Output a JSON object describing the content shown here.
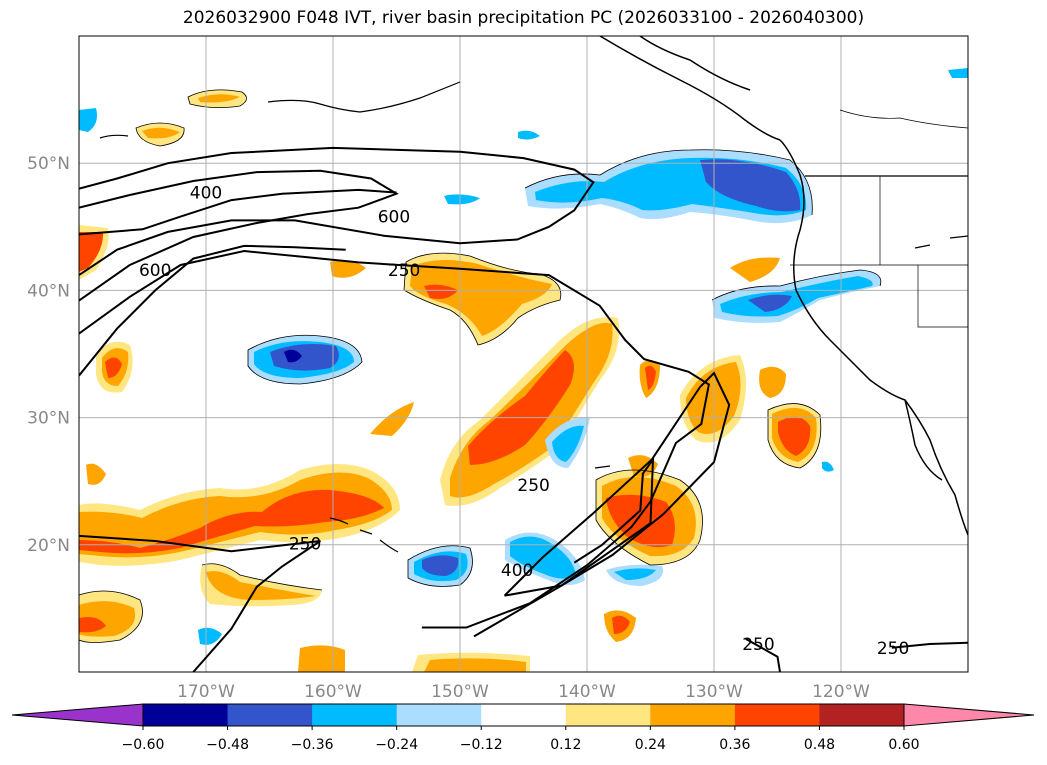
{
  "title": "2026032900 F048 IVT, river basin precipitation PC (2026033100 - 2026040300)",
  "chart_data": {
    "type": "heatmap",
    "projection": "lat-lon map",
    "xlim": [
      -180,
      -110
    ],
    "ylim": [
      10,
      60
    ],
    "x_ticks": [
      {
        "value": -170,
        "label": "170°W"
      },
      {
        "value": -160,
        "label": "160°W"
      },
      {
        "value": -150,
        "label": "150°W"
      },
      {
        "value": -140,
        "label": "140°W"
      },
      {
        "value": -130,
        "label": "130°W"
      },
      {
        "value": -120,
        "label": "120°W"
      }
    ],
    "y_ticks": [
      {
        "value": 20,
        "label": "20°N"
      },
      {
        "value": 30,
        "label": "30°N"
      },
      {
        "value": 40,
        "label": "40°N"
      },
      {
        "value": 50,
        "label": "50°N"
      }
    ],
    "grid": true,
    "colorbar": {
      "levels": [
        -0.6,
        -0.48,
        -0.36,
        -0.24,
        -0.12,
        0.12,
        0.24,
        0.36,
        0.48,
        0.6
      ],
      "tick_labels": [
        "−0.60",
        "−0.48",
        "−0.36",
        "−0.24",
        "−0.12",
        "0.12",
        "0.24",
        "0.36",
        "0.48",
        "0.60"
      ],
      "colors": [
        "#000099",
        "#3355cc",
        "#00bbff",
        "#aaddff",
        "#ffffff",
        "#ffe680",
        "#ffa500",
        "#ff4400",
        "#b22222"
      ],
      "under_color": "#9933cc",
      "over_color": "#ff88aa",
      "extend": "both"
    },
    "ivt_contour_labels": [
      {
        "value": "400",
        "lon": -170,
        "lat": 47.7
      },
      {
        "value": "600",
        "lon": -174,
        "lat": 41.6
      },
      {
        "value": "600",
        "lon": -155.2,
        "lat": 45.8
      },
      {
        "value": "250",
        "lon": -154.4,
        "lat": 41.6
      },
      {
        "value": "250",
        "lon": -162.2,
        "lat": 20.1
      },
      {
        "value": "250",
        "lon": -144.2,
        "lat": 24.7
      },
      {
        "value": "400",
        "lon": -145.5,
        "lat": 18.0
      },
      {
        "value": "250",
        "lon": -126.5,
        "lat": 12.2
      },
      {
        "value": "250",
        "lon": -115.9,
        "lat": 11.9
      }
    ],
    "ivt_contours": [
      [
        [
          -180,
          48
        ],
        [
          -177,
          48.8
        ],
        [
          -173,
          50
        ],
        [
          -168,
          50.8
        ],
        [
          -160,
          51.2
        ],
        [
          -150,
          50.9
        ],
        [
          -145,
          50.4
        ],
        [
          -141,
          49.5
        ],
        [
          -139.5,
          48.5
        ],
        [
          -141,
          46.3
        ],
        [
          -143,
          45.0
        ],
        [
          -145.5,
          44
        ],
        [
          -150,
          43.7
        ],
        [
          -156,
          44.3
        ],
        [
          -163,
          45.5
        ],
        [
          -168,
          45.5
        ],
        [
          -173,
          44.6
        ],
        [
          -177,
          43.2
        ],
        [
          -180,
          41.2
        ]
      ],
      [
        [
          -180,
          46.5
        ],
        [
          -176,
          47.5
        ],
        [
          -171,
          48.6
        ],
        [
          -166,
          49.3
        ],
        [
          -161,
          49.4
        ],
        [
          -157,
          48.8
        ],
        [
          -155,
          47.6
        ],
        [
          -158,
          46.5
        ],
        [
          -162,
          46.0
        ],
        [
          -166,
          45.3
        ],
        [
          -171,
          44.2
        ],
        [
          -176,
          42.0
        ],
        [
          -180,
          39.2
        ]
      ],
      [
        [
          -180,
          44.4
        ],
        [
          -175,
          44.8
        ],
        [
          -172,
          45.8
        ],
        [
          -168,
          47.1
        ],
        [
          -164,
          47.6
        ],
        [
          -158,
          47.9
        ],
        [
          -155,
          47.7
        ]
      ],
      [
        [
          -180,
          36.6
        ],
        [
          -176,
          39.5
        ],
        [
          -172,
          42.0
        ],
        [
          -167,
          43.1
        ],
        [
          -162,
          42.6
        ],
        [
          -158,
          42.2
        ],
        [
          -150,
          41.7
        ],
        [
          -143,
          41.2
        ],
        [
          -139,
          38.8
        ],
        [
          -137,
          36.1
        ],
        [
          -135.5,
          34.6
        ],
        [
          -132,
          33.6
        ],
        [
          -130.4,
          32.6
        ],
        [
          -131,
          29.5
        ],
        [
          -133,
          28.0
        ],
        [
          -135,
          23.4
        ],
        [
          -136.5,
          21.4
        ],
        [
          -140,
          18.4
        ],
        [
          -144.5,
          15.4
        ],
        [
          -149.5,
          13.5
        ],
        [
          -153,
          13.5
        ]
      ],
      [
        [
          -180,
          33.3
        ],
        [
          -177,
          37.0
        ],
        [
          -174,
          40.0
        ],
        [
          -171,
          42.5
        ],
        [
          -167,
          43.5
        ],
        [
          -163,
          43.4
        ],
        [
          -159,
          43.2
        ]
      ],
      [
        [
          -146.5,
          16.0
        ],
        [
          -143.5,
          19.0
        ],
        [
          -139.6,
          22.4
        ],
        [
          -134.9,
          26.7
        ],
        [
          -131.1,
          32.4
        ],
        [
          -130.0,
          33.5
        ],
        [
          -128.8,
          31.0
        ],
        [
          -130,
          26.5
        ],
        [
          -134,
          22.4
        ],
        [
          -138,
          19.2
        ],
        [
          -142,
          16.8
        ],
        [
          -146.5,
          16.0
        ]
      ],
      [
        [
          -148.9,
          12.8
        ],
        [
          -142,
          16.8
        ],
        [
          -135,
          21.7
        ],
        [
          -134.8,
          26.7
        ],
        [
          -135.6,
          25.6
        ],
        [
          -135.8,
          22.7
        ],
        [
          -138.8,
          20.0
        ],
        [
          -141,
          18.6
        ]
      ],
      [
        [
          -180,
          20.7
        ],
        [
          -174,
          20.3
        ],
        [
          -168,
          19.5
        ],
        [
          -161,
          20.3
        ],
        [
          -164,
          18.3
        ],
        [
          -166,
          16.7
        ],
        [
          -168,
          13.4
        ],
        [
          -171,
          10.0
        ]
      ],
      [
        [
          -127.5,
          12.6
        ],
        [
          -125,
          11.2
        ],
        [
          -124.8,
          10.0
        ]
      ],
      [
        [
          -116,
          11.9
        ],
        [
          -113,
          12.2
        ],
        [
          -110,
          12.3
        ]
      ]
    ]
  }
}
